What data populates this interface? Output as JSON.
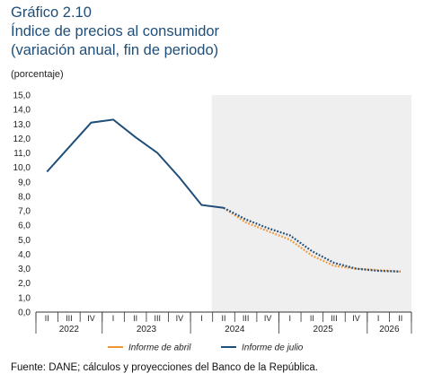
{
  "figure": {
    "title_line1": "Gráfico 2.10",
    "title_line2": "Índice de precios al consumidor",
    "title_line3": "(variación anual, fin de periodo)",
    "unit": "(porcentaje)",
    "source": "Fuente: DANE; cálculos y proyecciones del Banco de la República."
  },
  "chart_data": {
    "type": "line",
    "x": [
      "2022-II",
      "2022-III",
      "2022-IV",
      "2023-I",
      "2023-II",
      "2023-III",
      "2023-IV",
      "2024-I",
      "2024-II",
      "2024-III",
      "2024-IV",
      "2025-I",
      "2025-II",
      "2025-III",
      "2025-IV",
      "2026-I",
      "2026-II"
    ],
    "quarter_labels": [
      "II",
      "III",
      "IV",
      "I",
      "II",
      "III",
      "IV",
      "I",
      "II",
      "III",
      "IV",
      "I",
      "II",
      "III",
      "IV",
      "I",
      "II"
    ],
    "year_labels": [
      "2022",
      "2023",
      "2024",
      "2025",
      "2026"
    ],
    "ylim": [
      0,
      15
    ],
    "yticks": [
      "0,0",
      "1,0",
      "2,0",
      "3,0",
      "4,0",
      "5,0",
      "6,0",
      "7,0",
      "8,0",
      "9,0",
      "10,0",
      "11,0",
      "12,0",
      "13,0",
      "14,0",
      "15,0"
    ],
    "grid": false,
    "legend_position": "bottom",
    "shaded_region": "forecast (from 2024-I)",
    "colors": {
      "abril": "#f0963a",
      "julio": "#1f4e79",
      "shade": "#efefef",
      "title": "#1f4e79"
    },
    "series": [
      {
        "name": "Informe de abril",
        "style": "dotted",
        "values": [
          9.7,
          11.4,
          13.1,
          13.3,
          12.1,
          11.0,
          9.3,
          7.4,
          7.2,
          6.2,
          5.6,
          5.0,
          3.9,
          3.2,
          3.0,
          2.9,
          2.8
        ]
      },
      {
        "name": "Informe de julio",
        "style": "solid-then-dotted",
        "values": [
          9.7,
          11.4,
          13.1,
          13.3,
          12.1,
          11.0,
          9.3,
          7.4,
          7.2,
          6.4,
          5.8,
          5.3,
          4.2,
          3.4,
          3.0,
          2.85,
          2.8
        ]
      }
    ]
  }
}
